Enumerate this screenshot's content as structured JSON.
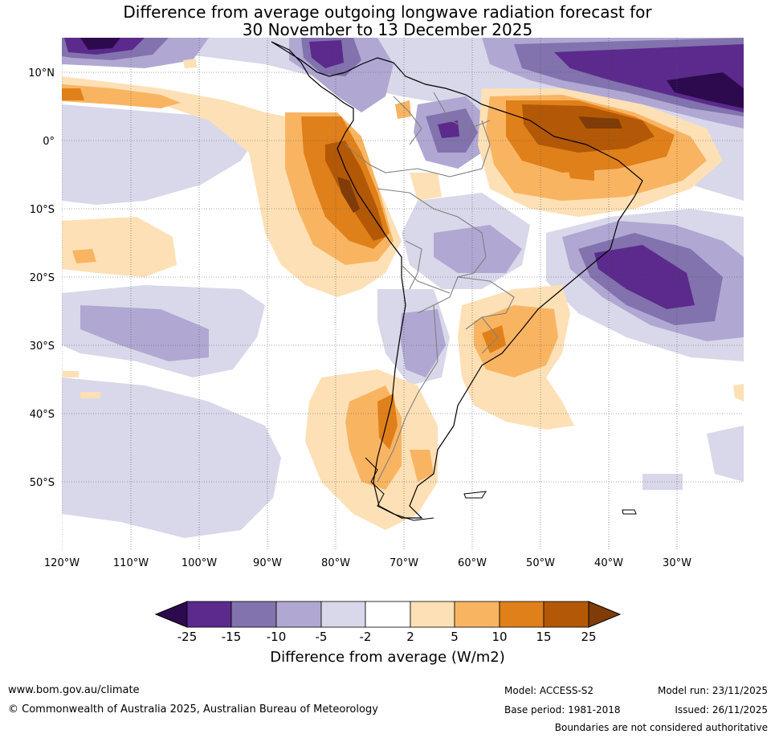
{
  "title": {
    "line1": "Difference from average outgoing longwave radiation forecast for",
    "line2": "30 November to 13 December 2025"
  },
  "map": {
    "lat_labels": [
      "10°N",
      "0°",
      "10°S",
      "20°S",
      "30°S",
      "40°S",
      "50°S"
    ],
    "lon_labels": [
      "120°W",
      "110°W",
      "100°W",
      "90°W",
      "80°W",
      "70°W",
      "60°W",
      "50°W",
      "40°W",
      "30°W"
    ]
  },
  "colorbar": {
    "title": "Difference from average (W/m2)",
    "ticks": [
      "-25",
      "-15",
      "-10",
      "-5",
      "-2",
      "2",
      "5",
      "10",
      "15",
      "25"
    ],
    "colors": [
      "#2d0a4e",
      "#5b2a8c",
      "#8272ad",
      "#b0a8d2",
      "#d8d8ea",
      "#ffffff",
      "#fde0b6",
      "#f9b462",
      "#e0801a",
      "#b35806",
      "#7f3b08"
    ]
  },
  "footer": {
    "website": "www.bom.gov.au/climate",
    "copyright": "© Commonwealth of Australia 2025, Australian Bureau of Meteorology",
    "model": "Model: ACCESS-S2",
    "base_period": "Base period: 1981-2018",
    "model_run": "Model run: 23/11/2025",
    "issued": "Issued: 26/11/2025",
    "disclaimer": "Boundaries are not considered authoritative"
  }
}
